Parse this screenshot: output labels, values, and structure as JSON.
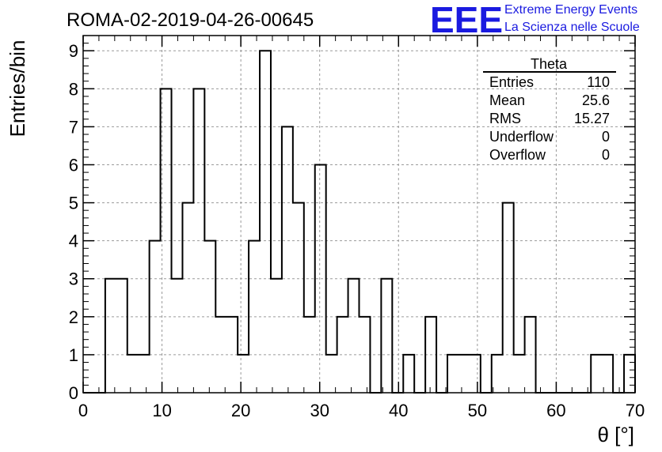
{
  "chart_data": {
    "type": "histogram",
    "title": "ROMA-02-2019-04-26-00645",
    "xlabel": "θ [°]",
    "ylabel": "Entries/bin",
    "xlim": [
      0,
      70
    ],
    "ylim": [
      0,
      9.4
    ],
    "xticks": [
      0,
      10,
      20,
      30,
      40,
      50,
      60,
      70
    ],
    "yticks": [
      0,
      1,
      2,
      3,
      4,
      5,
      6,
      7,
      8,
      9
    ],
    "grid": true,
    "bin_width": 1.4,
    "bin_start": 0,
    "values": [
      0,
      0,
      3,
      3,
      1,
      1,
      4,
      8,
      3,
      5,
      8,
      4,
      2,
      2,
      1,
      4,
      9,
      3,
      7,
      5,
      2,
      6,
      1,
      2,
      3,
      2,
      0,
      3,
      0,
      1,
      0,
      2,
      0,
      1,
      1,
      1,
      0,
      1,
      5,
      1,
      2,
      0,
      0,
      0,
      0,
      0,
      1,
      1,
      0,
      1
    ],
    "stats_box": {
      "title": "Theta",
      "rows": [
        {
          "label": "Entries",
          "value": "110"
        },
        {
          "label": "Mean",
          "value": "25.6"
        },
        {
          "label": "RMS",
          "value": "15.27"
        },
        {
          "label": "Underflow",
          "value": "0"
        },
        {
          "label": "Overflow",
          "value": "0"
        }
      ]
    },
    "line_color": "#000000",
    "grid_color": "#9a9a9a"
  },
  "logo": {
    "big": "EEE",
    "line1": "Extreme Energy Events",
    "line2": "La Scienza nelle Scuole",
    "color": "#1a1ae0"
  }
}
